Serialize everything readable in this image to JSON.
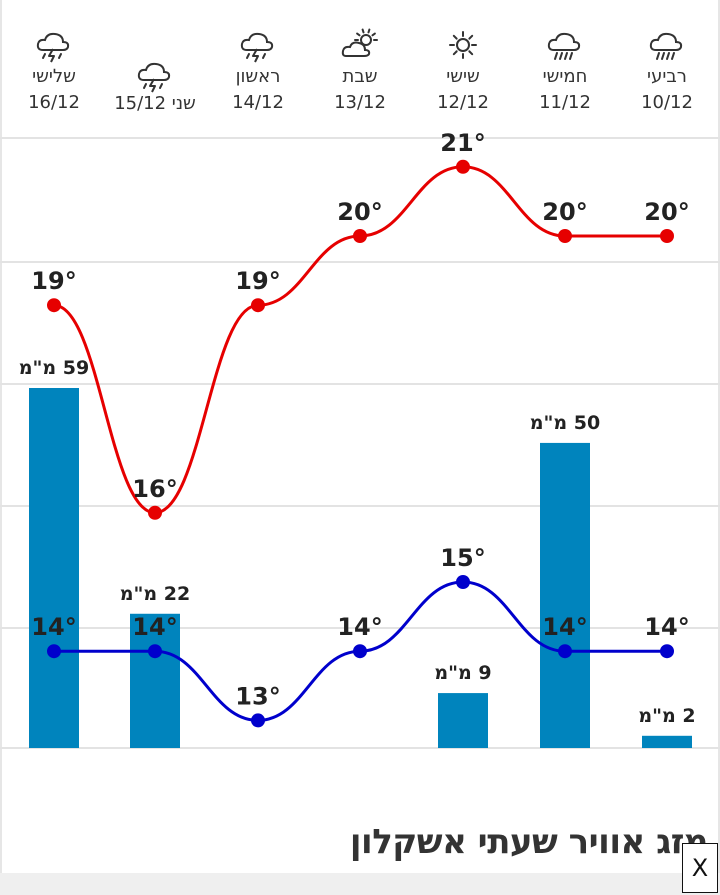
{
  "page": {
    "title": "מזג אוויר שעתי אשקלון"
  },
  "close_button": {
    "label": "X"
  },
  "days": [
    {
      "name": "רביעי",
      "date": "10/12",
      "icon": "rain-icon"
    },
    {
      "name": "חמישי",
      "date": "11/12",
      "icon": "rain-icon"
    },
    {
      "name": "שישי",
      "date": "12/12",
      "icon": "sun-icon"
    },
    {
      "name": "שבת",
      "date": "13/12",
      "icon": "partly-cloudy-icon"
    },
    {
      "name": "ראשון",
      "date": "14/12",
      "icon": "thunderstorm-icon"
    },
    {
      "name": "שני",
      "date": "15/12",
      "icon": "thunderstorm-icon"
    },
    {
      "name": "שלישי",
      "date": "16/12",
      "icon": "thunderstorm-icon"
    }
  ],
  "chart_data": {
    "type": "line-bar-combo",
    "categories": [
      "10/12",
      "11/12",
      "12/12",
      "13/12",
      "14/12",
      "15/12",
      "16/12"
    ],
    "series": [
      {
        "values": [
          20,
          20,
          21,
          20,
          19,
          16,
          19
        ],
        "color": "#e60000",
        "labels": [
          "20°",
          "20°",
          "21°",
          "20°",
          "19°",
          "16°",
          "19°"
        ]
      },
      {
        "values": [
          14,
          14,
          15,
          14,
          13,
          14,
          14
        ],
        "color": "#0000cc",
        "labels": [
          "14°",
          "14°",
          "15°",
          "14°",
          "13°",
          "14°",
          "14°"
        ]
      }
    ],
    "bars": {
      "values": [
        2,
        50,
        9,
        null,
        null,
        22,
        59
      ],
      "labels": [
        "2 מ\"מ",
        "50 מ\"מ",
        "9 מ\"מ",
        "",
        "",
        "22 מ\"מ",
        "59 מ\"מ"
      ],
      "color": "#0084bd"
    },
    "grid": true
  }
}
